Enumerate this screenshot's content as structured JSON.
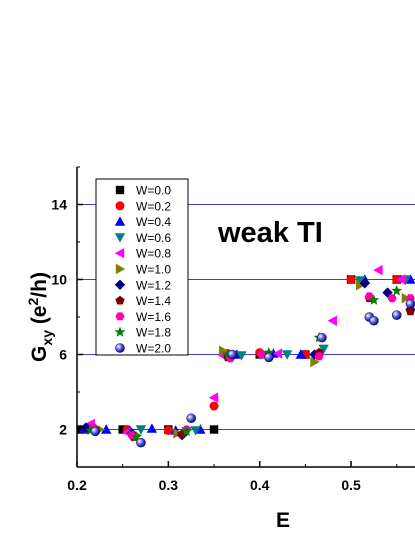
{
  "chart_data": {
    "type": "scatter",
    "title": "",
    "annotation": "weak TI",
    "xlabel": "E",
    "ylabel": {
      "main": "G",
      "sub": "xy",
      "unit_open": " (e",
      "sup": "2",
      "unit_close": "/h)"
    },
    "xlim": [
      0.2,
      0.57
    ],
    "ylim": [
      0,
      16
    ],
    "x_ticks": [
      "0.2",
      "0.3",
      "0.4",
      "0.5"
    ],
    "y_ticks": [
      "2",
      "6",
      "10",
      "14"
    ],
    "grid": "horizontal at 2, 6, 10, 14",
    "legend_position": "top-left",
    "series": [
      {
        "name": "W=0.0",
        "marker": "square",
        "color": "#000000",
        "points": [
          [
            0.205,
            2.0
          ],
          [
            0.25,
            2.0
          ],
          [
            0.3,
            2.0
          ],
          [
            0.35,
            2.0
          ],
          [
            0.365,
            6.0
          ],
          [
            0.4,
            6.0
          ],
          [
            0.45,
            6.0
          ],
          [
            0.5,
            10.0
          ],
          [
            0.55,
            10.0
          ]
        ]
      },
      {
        "name": "W=0.2",
        "marker": "circle",
        "color": "#ff0000",
        "points": [
          [
            0.21,
            2.0
          ],
          [
            0.255,
            2.0
          ],
          [
            0.3,
            1.95
          ],
          [
            0.35,
            3.25
          ],
          [
            0.365,
            6.05
          ],
          [
            0.4,
            6.1
          ],
          [
            0.45,
            6.0
          ],
          [
            0.5,
            10.0
          ],
          [
            0.55,
            10.0
          ]
        ]
      },
      {
        "name": "W=0.4",
        "marker": "triangle-up",
        "color": "#0000ff",
        "points": [
          [
            0.208,
            2.05
          ],
          [
            0.232,
            2.0
          ],
          [
            0.258,
            1.95
          ],
          [
            0.282,
            2.05
          ],
          [
            0.308,
            1.95
          ],
          [
            0.335,
            2.0
          ],
          [
            0.375,
            6.0
          ],
          [
            0.415,
            6.05
          ],
          [
            0.445,
            6.0
          ],
          [
            0.515,
            10.0
          ],
          [
            0.565,
            10.0
          ]
        ]
      },
      {
        "name": "W=0.6",
        "marker": "triangle-down",
        "color": "#008080",
        "points": [
          [
            0.22,
            1.95
          ],
          [
            0.27,
            2.0
          ],
          [
            0.32,
            1.9
          ],
          [
            0.33,
            1.95
          ],
          [
            0.38,
            5.95
          ],
          [
            0.43,
            6.0
          ],
          [
            0.47,
            6.3
          ],
          [
            0.51,
            9.95
          ],
          [
            0.56,
            10.0
          ]
        ]
      },
      {
        "name": "W=0.8",
        "marker": "triangle-left",
        "color": "#ff00ff",
        "points": [
          [
            0.215,
            2.3
          ],
          [
            0.255,
            1.85
          ],
          [
            0.35,
            3.7
          ],
          [
            0.36,
            5.95
          ],
          [
            0.42,
            6.05
          ],
          [
            0.48,
            7.8
          ],
          [
            0.53,
            10.5
          ],
          [
            0.555,
            10.0
          ]
        ]
      },
      {
        "name": "W=1.0",
        "marker": "triangle-right",
        "color": "#808000",
        "points": [
          [
            0.225,
            2.0
          ],
          [
            0.265,
            1.7
          ],
          [
            0.31,
            1.8
          ],
          [
            0.36,
            6.2
          ],
          [
            0.405,
            6.0
          ],
          [
            0.46,
            5.6
          ],
          [
            0.51,
            9.7
          ],
          [
            0.56,
            9.0
          ]
        ]
      },
      {
        "name": "W=1.2",
        "marker": "diamond",
        "color": "#000080",
        "points": [
          [
            0.21,
            2.1
          ],
          [
            0.26,
            1.8
          ],
          [
            0.315,
            1.7
          ],
          [
            0.37,
            5.9
          ],
          [
            0.41,
            6.0
          ],
          [
            0.46,
            6.0
          ],
          [
            0.515,
            9.8
          ],
          [
            0.54,
            9.3
          ],
          [
            0.565,
            8.4
          ]
        ]
      },
      {
        "name": "W=1.4",
        "marker": "pentagon",
        "color": "#800000",
        "points": [
          [
            0.22,
            2.0
          ],
          [
            0.262,
            1.6
          ],
          [
            0.315,
            1.75
          ],
          [
            0.365,
            5.85
          ],
          [
            0.41,
            5.9
          ],
          [
            0.465,
            6.1
          ],
          [
            0.52,
            9.0
          ],
          [
            0.565,
            8.3
          ]
        ]
      },
      {
        "name": "W=1.6",
        "marker": "hexagon",
        "color": "#ff00aa",
        "points": [
          [
            0.218,
            2.1
          ],
          [
            0.26,
            1.7
          ],
          [
            0.32,
            2.0
          ],
          [
            0.368,
            5.8
          ],
          [
            0.402,
            6.0
          ],
          [
            0.465,
            5.9
          ],
          [
            0.52,
            9.1
          ],
          [
            0.545,
            9.0
          ],
          [
            0.565,
            9.0
          ]
        ]
      },
      {
        "name": "W=1.8",
        "marker": "star",
        "color": "#008000",
        "points": [
          [
            0.215,
            1.95
          ],
          [
            0.265,
            1.6
          ],
          [
            0.32,
            1.9
          ],
          [
            0.365,
            6.0
          ],
          [
            0.41,
            6.1
          ],
          [
            0.465,
            6.9
          ],
          [
            0.525,
            8.9
          ],
          [
            0.55,
            9.4
          ]
        ]
      },
      {
        "name": "W=2.0",
        "marker": "sphere",
        "color": "#1a1ab0",
        "points": [
          [
            0.22,
            1.9
          ],
          [
            0.27,
            1.3
          ],
          [
            0.325,
            2.6
          ],
          [
            0.37,
            6.0
          ],
          [
            0.41,
            5.85
          ],
          [
            0.468,
            6.9
          ],
          [
            0.52,
            8.0
          ],
          [
            0.525,
            7.8
          ],
          [
            0.55,
            8.1
          ],
          [
            0.565,
            8.7
          ]
        ]
      }
    ]
  }
}
